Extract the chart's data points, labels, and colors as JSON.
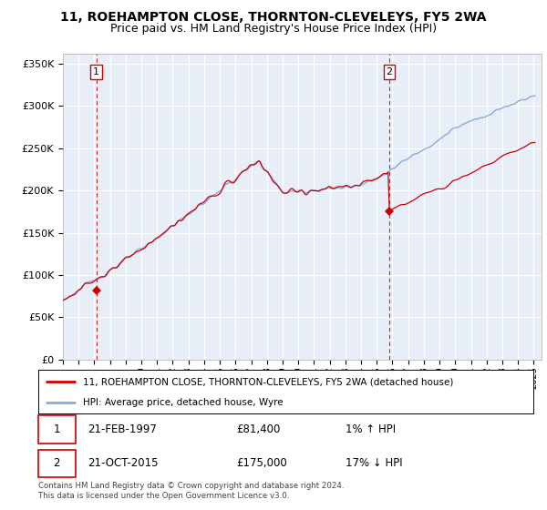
{
  "title": "11, ROEHAMPTON CLOSE, THORNTON-CLEVELEYS, FY5 2WA",
  "subtitle": "Price paid vs. HM Land Registry's House Price Index (HPI)",
  "ylabel_ticks": [
    "£0",
    "£50K",
    "£100K",
    "£150K",
    "£200K",
    "£250K",
    "£300K",
    "£350K"
  ],
  "ytick_values": [
    0,
    50000,
    100000,
    150000,
    200000,
    250000,
    300000,
    350000
  ],
  "ylim": [
    0,
    362000
  ],
  "xlim_start": 1995.0,
  "xlim_end": 2025.5,
  "sale1_x": 1997.13,
  "sale1_y": 81400,
  "sale1_label": "1",
  "sale1_date": "21-FEB-1997",
  "sale1_price": "£81,400",
  "sale1_hpi": "1% ↑ HPI",
  "sale2_x": 2015.8,
  "sale2_y": 175000,
  "sale2_label": "2",
  "sale2_date": "21-OCT-2015",
  "sale2_price": "£175,000",
  "sale2_hpi": "17% ↓ HPI",
  "hpi_line_color": "#88aadd",
  "sale_line_color": "#cc0000",
  "sale_dot_color": "#cc0000",
  "vline_color": "#cc0000",
  "bg_color": "#e8eef8",
  "legend_line1": "11, ROEHAMPTON CLOSE, THORNTON-CLEVELEYS, FY5 2WA (detached house)",
  "legend_line2": "HPI: Average price, detached house, Wyre",
  "footer": "Contains HM Land Registry data © Crown copyright and database right 2024.\nThis data is licensed under the Open Government Licence v3.0.",
  "title_fontsize": 10,
  "subtitle_fontsize": 9
}
